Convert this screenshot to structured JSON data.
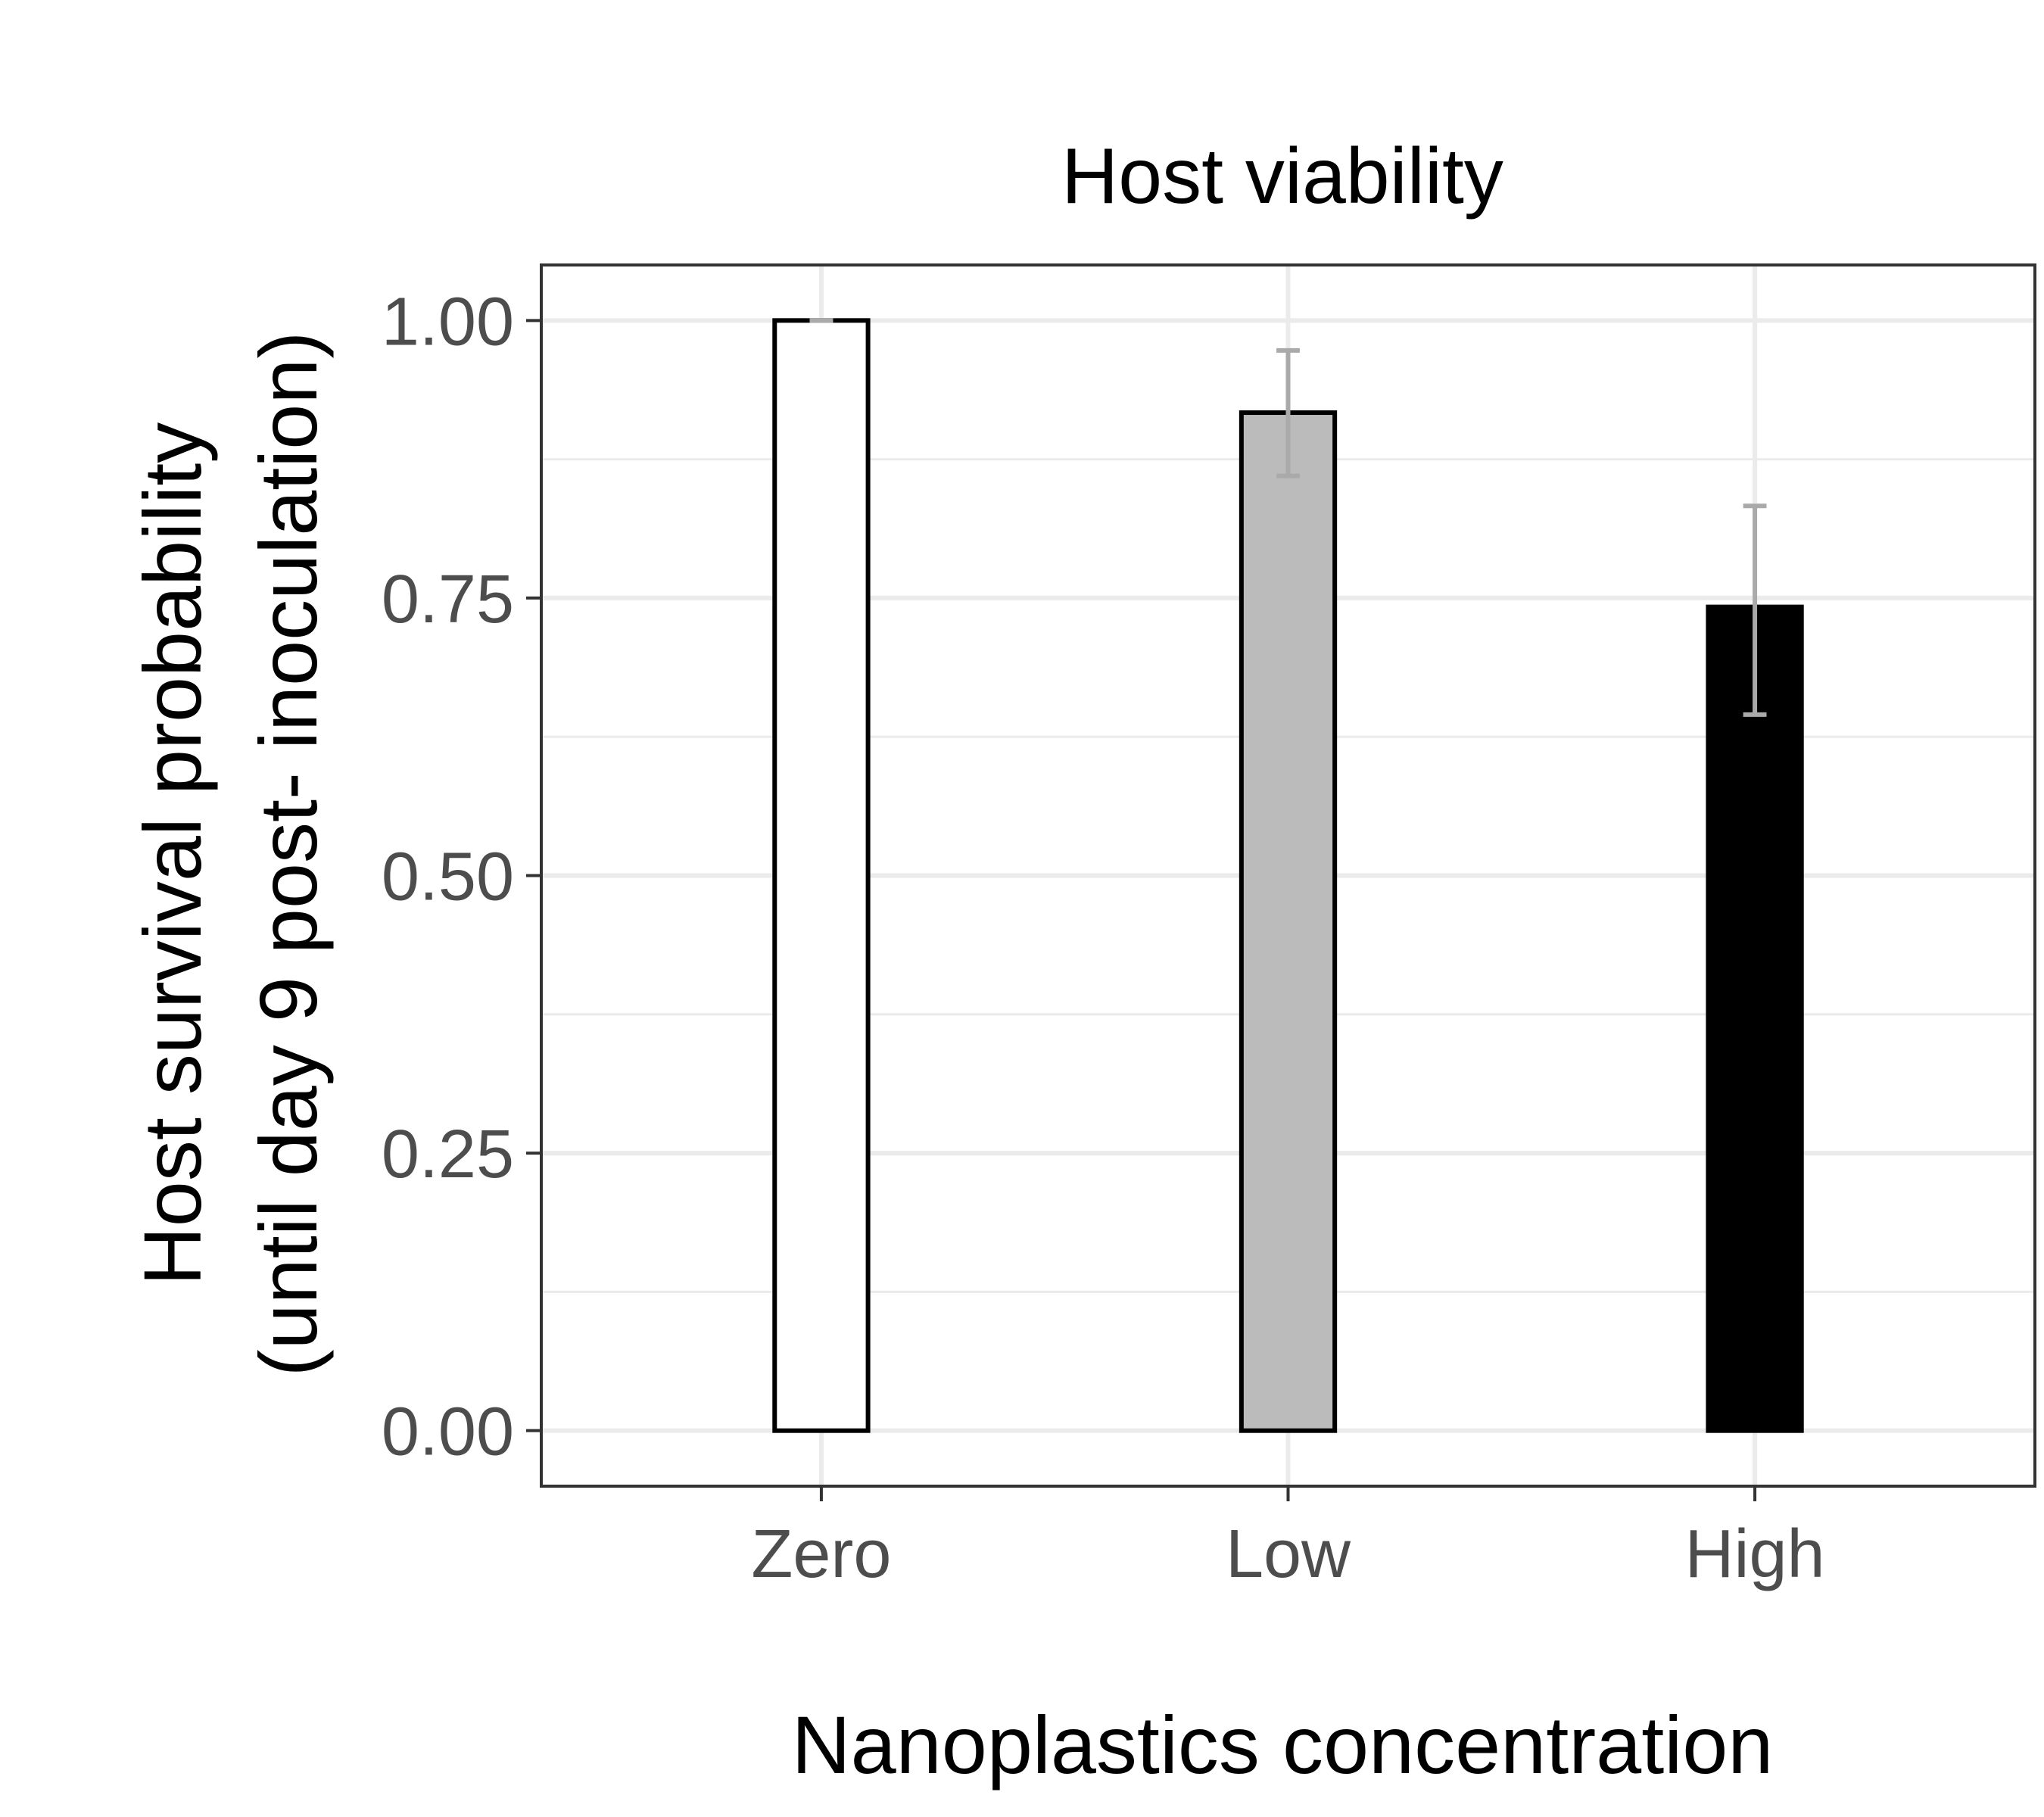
{
  "chart_data": {
    "type": "bar",
    "title": "Host viability",
    "xlabel": "Nanoplastics concentration",
    "ylabel_line1": "Host survival probability",
    "ylabel_line2": "(until day 9 post- inoculation)",
    "categories": [
      "Zero",
      "Low",
      "High"
    ],
    "values": [
      1.0,
      0.917,
      0.742
    ],
    "error_lower": [
      1.0,
      0.86,
      0.645
    ],
    "error_upper": [
      1.0,
      0.973,
      0.833
    ],
    "bar_colors": [
      "#ffffff",
      "#bbbbbb",
      "#000000"
    ],
    "error_color": "#aaaaaa",
    "ylim": [
      -0.05,
      1.05
    ],
    "yticks": [
      0.0,
      0.25,
      0.5,
      0.75,
      1.0
    ],
    "ytick_labels": [
      "0.00",
      "0.25",
      "0.50",
      "0.75",
      "1.00"
    ],
    "grid": true,
    "legend": "none"
  }
}
